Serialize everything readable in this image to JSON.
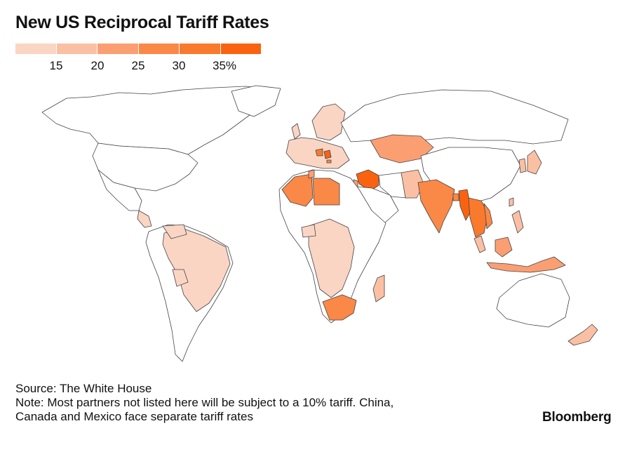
{
  "title": "New US Reciprocal Tariff Rates",
  "legend": {
    "labels": [
      "15",
      "20",
      "25",
      "30",
      "35%"
    ],
    "colors": [
      "#fad5c4",
      "#fbc0a4",
      "#fb9f73",
      "#fa8847",
      "#fa7a2d",
      "#f96310"
    ]
  },
  "colors": {
    "land": "#ffffff",
    "border": "#444444"
  },
  "source": "Source: The White House",
  "note_line1": "Note: Most partners not listed here will be subject to a 10% tariff. China,",
  "note_line2": "Canada and Mexico face separate tariff rates",
  "brand": "Bloomberg"
}
